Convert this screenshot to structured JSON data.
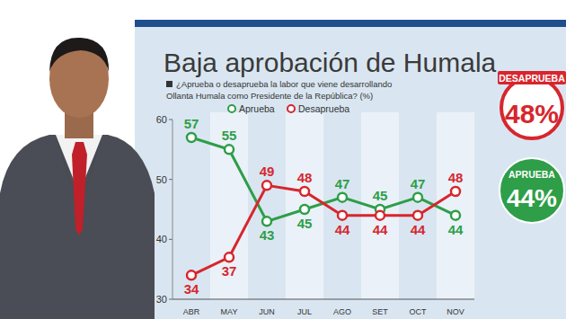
{
  "chart_data": {
    "type": "line",
    "title": "Baja aprobación de Humala",
    "subtitle": [
      "¿Aprueba o desaprueba la labor que viene desarrollando",
      "Ollanta Humala como Presidente de la República? (%)"
    ],
    "categories": [
      "ABR",
      "MAY",
      "JUN",
      "JUL",
      "AGO",
      "SET",
      "OCT",
      "NOV"
    ],
    "series": [
      {
        "name": "Aprueba",
        "color": "#2e9e48",
        "marker": "circle",
        "values": [
          57,
          55,
          43,
          45,
          47,
          45,
          47,
          44
        ]
      },
      {
        "name": "Desaprueba",
        "color": "#d7262d",
        "marker": "circle",
        "values": [
          34,
          37,
          49,
          48,
          44,
          44,
          44,
          48
        ]
      }
    ],
    "ylim": [
      30,
      60
    ],
    "yticks": [
      30,
      40,
      50,
      60
    ],
    "grid": false,
    "data_labels": true,
    "legend": "top",
    "annotations": [
      {
        "title": "DESAPRUEBA",
        "text": "48%",
        "color": "#d7262d"
      },
      {
        "title": "APRUEBA",
        "text": "44%",
        "color": "#2e9e48"
      }
    ]
  }
}
